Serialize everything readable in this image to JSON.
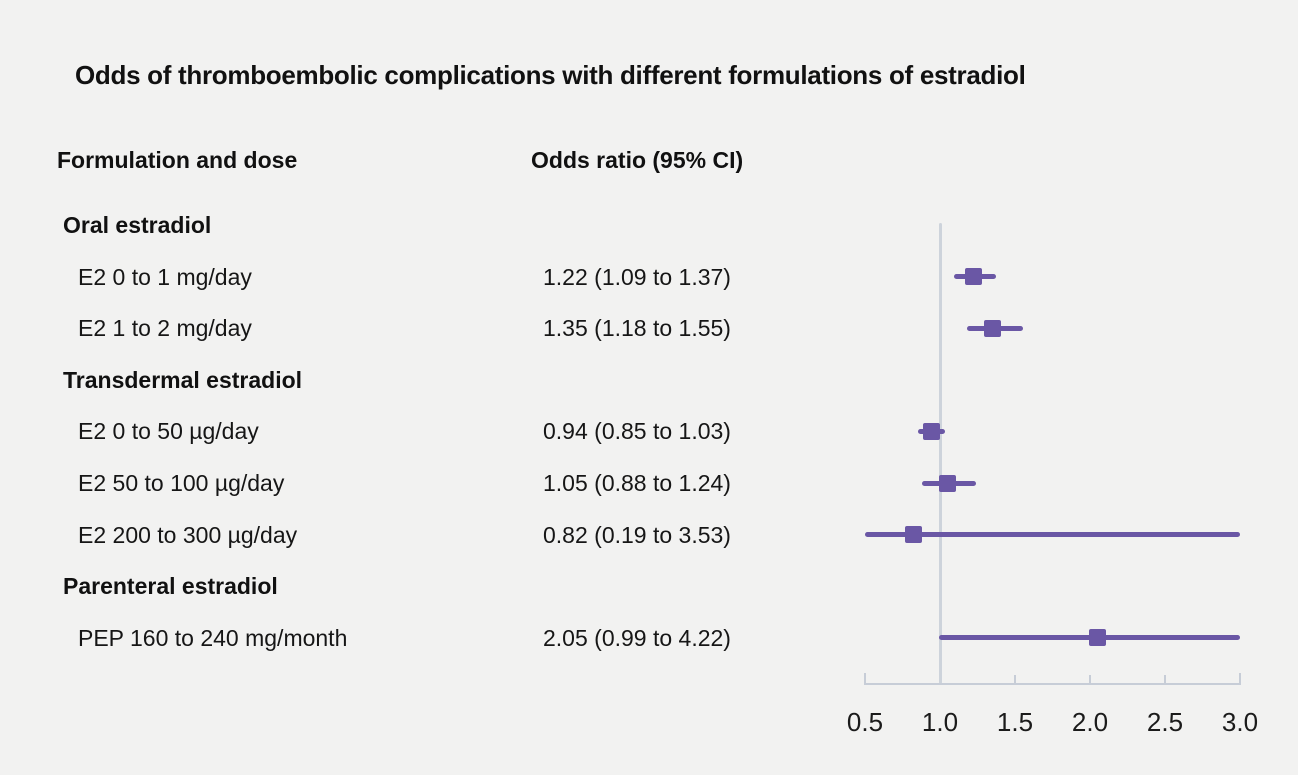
{
  "title": "Odds of thromboembolic complications with different formulations of estradiol",
  "columns": {
    "formulation": "Formulation and dose",
    "odds_ratio": "Odds ratio (95% CI)"
  },
  "chart_data": {
    "type": "forest",
    "title": "Odds of thromboembolic complications with different formulations of estradiol",
    "xlim": [
      0.5,
      3.0
    ],
    "reference_line": 1.0,
    "tick_values": [
      0.5,
      1.0,
      1.5,
      2.0,
      2.5,
      3.0
    ],
    "tick_labels": [
      "0.5",
      "1.0",
      "1.5",
      "2.0",
      "2.5",
      "3.0"
    ],
    "grid": false,
    "rows": [
      {
        "kind": "group",
        "label": "Oral estradiol"
      },
      {
        "kind": "item",
        "label": "E2 0 to 1 mg/day",
        "value_text": "1.22 (1.09 to 1.37)",
        "estimate": 1.22,
        "ci_low": 1.09,
        "ci_high": 1.37
      },
      {
        "kind": "item",
        "label": "E2 1 to 2 mg/day",
        "value_text": "1.35 (1.18 to 1.55)",
        "estimate": 1.35,
        "ci_low": 1.18,
        "ci_high": 1.55
      },
      {
        "kind": "group",
        "label": "Transdermal estradiol"
      },
      {
        "kind": "item",
        "label": "E2 0 to 50 µg/day",
        "value_text": "0.94 (0.85 to 1.03)",
        "estimate": 0.94,
        "ci_low": 0.85,
        "ci_high": 1.03
      },
      {
        "kind": "item",
        "label": "E2 50 to 100 µg/day",
        "value_text": "1.05 (0.88 to 1.24)",
        "estimate": 1.05,
        "ci_low": 0.88,
        "ci_high": 1.24
      },
      {
        "kind": "item",
        "label": "E2 200 to 300 µg/day",
        "value_text": "0.82 (0.19 to 3.53)",
        "estimate": 0.82,
        "ci_low": 0.19,
        "ci_high": 3.53
      },
      {
        "kind": "group",
        "label": "Parenteral estradiol"
      },
      {
        "kind": "item",
        "label": "PEP 160 to 240 mg/month",
        "value_text": "2.05 (0.99 to 4.22)",
        "estimate": 2.05,
        "ci_low": 0.99,
        "ci_high": 4.22
      }
    ]
  },
  "colors": {
    "marker": "#6a57a5",
    "axis": "#c7cdd7",
    "reference_line": "#cdd3db",
    "background": "#f2f2f1",
    "text": "#161616"
  }
}
